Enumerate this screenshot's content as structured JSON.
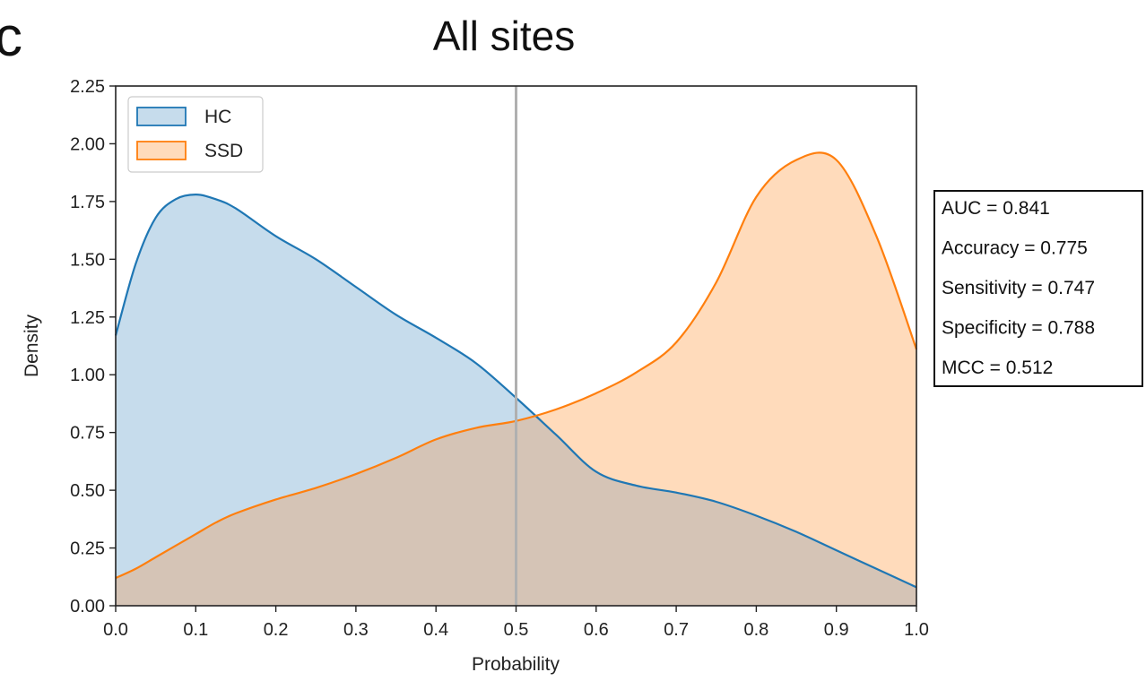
{
  "panel_letter": "c",
  "chart_data": {
    "type": "area",
    "title": "All sites",
    "xlabel": "Probability",
    "ylabel": "Density",
    "xlim": [
      0.0,
      1.0
    ],
    "ylim": [
      0.0,
      2.25
    ],
    "xticks": [
      "0.0",
      "0.1",
      "0.2",
      "0.3",
      "0.4",
      "0.5",
      "0.6",
      "0.7",
      "0.8",
      "0.9",
      "1.0"
    ],
    "yticks": [
      "0.00",
      "0.25",
      "0.50",
      "0.75",
      "1.00",
      "1.25",
      "1.50",
      "1.75",
      "2.00",
      "2.25"
    ],
    "threshold": 0.5,
    "legend_position": "top-left",
    "x": [
      0.0,
      0.025,
      0.05,
      0.075,
      0.1,
      0.125,
      0.15,
      0.2,
      0.25,
      0.3,
      0.35,
      0.4,
      0.45,
      0.5,
      0.55,
      0.6,
      0.65,
      0.7,
      0.75,
      0.8,
      0.85,
      0.9,
      0.95,
      1.0
    ],
    "series": [
      {
        "name": "HC",
        "color": "#1f77b4",
        "fill": "#c6dcec",
        "values": [
          1.17,
          1.48,
          1.68,
          1.76,
          1.78,
          1.76,
          1.72,
          1.6,
          1.5,
          1.38,
          1.26,
          1.16,
          1.05,
          0.9,
          0.74,
          0.58,
          0.52,
          0.49,
          0.45,
          0.39,
          0.32,
          0.24,
          0.16,
          0.08
        ]
      },
      {
        "name": "SSD",
        "color": "#ff7f0e",
        "fill": "#ffdbbb",
        "values": [
          0.12,
          0.16,
          0.21,
          0.26,
          0.31,
          0.36,
          0.4,
          0.46,
          0.51,
          0.57,
          0.64,
          0.72,
          0.77,
          0.8,
          0.85,
          0.92,
          1.01,
          1.14,
          1.4,
          1.77,
          1.93,
          1.93,
          1.6,
          1.11
        ]
      }
    ],
    "overlap_fill": "#d5c4b6",
    "stats": [
      "AUC = 0.841",
      "Accuracy = 0.775",
      "Sensitivity = 0.747",
      "Specificity = 0.788",
      "MCC = 0.512"
    ]
  }
}
